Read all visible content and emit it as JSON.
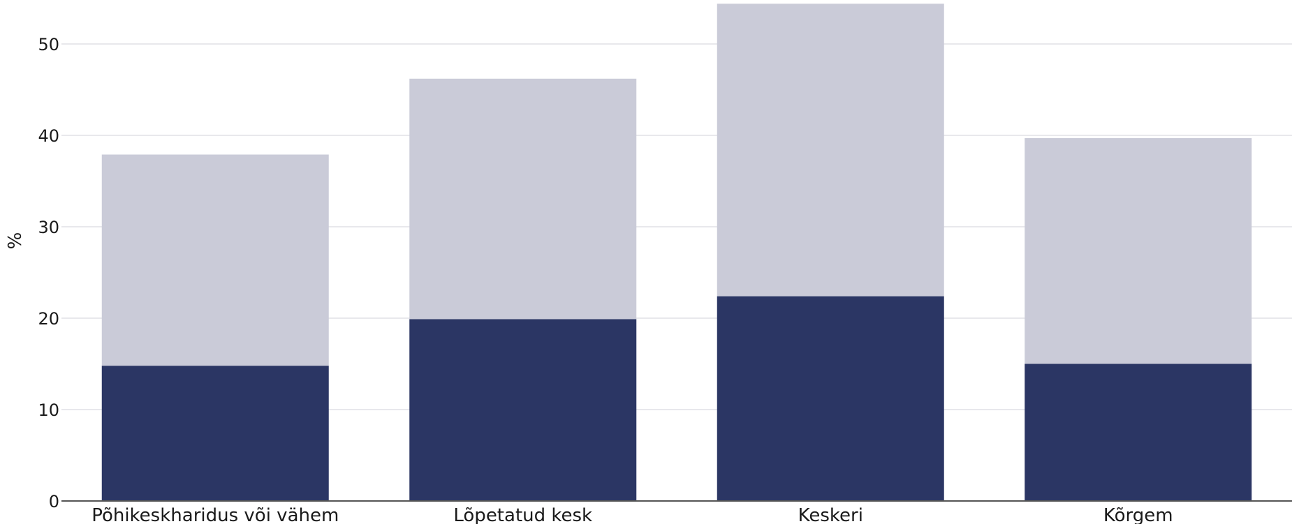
{
  "chart_data": {
    "type": "bar",
    "stacked": true,
    "title": "",
    "xlabel": "",
    "ylabel": "%",
    "ylim": [
      0,
      54.5
    ],
    "yticks": [
      0,
      10,
      20,
      30,
      40,
      50
    ],
    "grid": true,
    "categories": [
      "Põhikeskharidus või vähem",
      "Lõpetatud kesk",
      "Keskeri",
      "Kõrgem"
    ],
    "series": [
      {
        "values": [
          14.8,
          19.9,
          22.4,
          15.0
        ],
        "color": "#2b3664"
      },
      {
        "values": [
          23.1,
          26.3,
          32.0,
          24.7
        ],
        "color": "#cacbd8"
      }
    ]
  },
  "style": {
    "grid_color": "#e8e8ec",
    "axis_color": "#555555"
  }
}
